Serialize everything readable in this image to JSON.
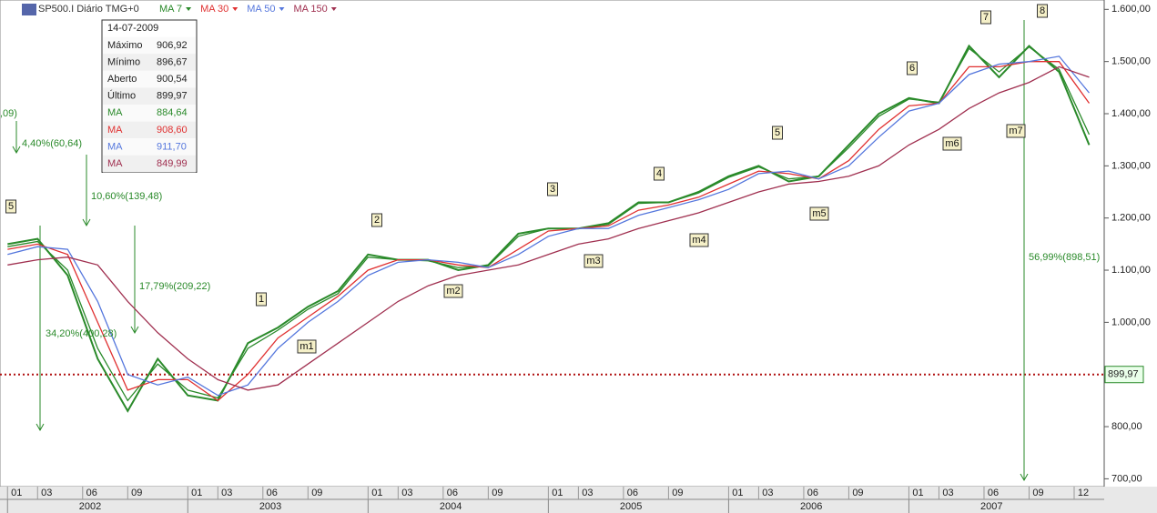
{
  "chart_data": {
    "type": "line",
    "instrument": "SP500.I Diário TMG+0",
    "x": [
      0,
      2,
      4,
      6,
      8,
      10,
      12,
      14,
      16,
      18,
      20,
      22,
      24,
      26,
      28,
      30,
      32,
      34,
      36,
      38,
      40,
      42,
      44,
      46,
      48,
      50,
      52,
      54,
      56,
      58,
      60,
      62,
      64,
      66,
      68,
      70,
      72
    ],
    "xlim": [
      -0.5,
      73
    ],
    "ylim": [
      685,
      1618
    ],
    "yticks": [
      {
        "value": 1600,
        "label": "1.600,00"
      },
      {
        "value": 1500,
        "label": "1.500,00"
      },
      {
        "value": 1400,
        "label": "1.400,00"
      },
      {
        "value": 1300,
        "label": "1.300,00"
      },
      {
        "value": 1200,
        "label": "1.200,00"
      },
      {
        "value": 1100,
        "label": "1.100,00"
      },
      {
        "value": 1000,
        "label": "1.000,00"
      },
      {
        "value": 900,
        "label": "900,00"
      },
      {
        "value": 800,
        "label": "800,00"
      },
      {
        "value": 700,
        "label": "700,00"
      }
    ],
    "xticks": [
      {
        "value": 0,
        "label": "01"
      },
      {
        "value": 2,
        "label": "03"
      },
      {
        "value": 5,
        "label": "06"
      },
      {
        "value": 8,
        "label": "09"
      },
      {
        "value": 12,
        "label": "01"
      },
      {
        "value": 14,
        "label": "03"
      },
      {
        "value": 17,
        "label": "06"
      },
      {
        "value": 20,
        "label": "09"
      },
      {
        "value": 24,
        "label": "01"
      },
      {
        "value": 26,
        "label": "03"
      },
      {
        "value": 29,
        "label": "06"
      },
      {
        "value": 32,
        "label": "09"
      },
      {
        "value": 36,
        "label": "01"
      },
      {
        "value": 38,
        "label": "03"
      },
      {
        "value": 41,
        "label": "06"
      },
      {
        "value": 44,
        "label": "09"
      },
      {
        "value": 48,
        "label": "01"
      },
      {
        "value": 50,
        "label": "03"
      },
      {
        "value": 53,
        "label": "06"
      },
      {
        "value": 56,
        "label": "09"
      },
      {
        "value": 60,
        "label": "01"
      },
      {
        "value": 62,
        "label": "03"
      },
      {
        "value": 65,
        "label": "06"
      },
      {
        "value": 68,
        "label": "09"
      },
      {
        "value": 71,
        "label": "12"
      }
    ],
    "year_labels": [
      {
        "value": 5.5,
        "label": "2002"
      },
      {
        "value": 17.5,
        "label": "2003"
      },
      {
        "value": 29.5,
        "label": "2004"
      },
      {
        "value": 41.5,
        "label": "2005"
      },
      {
        "value": 53.5,
        "label": "2006"
      },
      {
        "value": 65.5,
        "label": "2007"
      }
    ],
    "series": [
      {
        "name": "SP500.I Diário TMG+0",
        "color": "#2a8a2a",
        "values": [
          1150,
          1160,
          1090,
          930,
          830,
          930,
          860,
          850,
          960,
          990,
          1030,
          1060,
          1130,
          1120,
          1120,
          1100,
          1110,
          1170,
          1180,
          1180,
          1190,
          1230,
          1230,
          1250,
          1280,
          1300,
          1270,
          1280,
          1340,
          1400,
          1430,
          1420,
          1530,
          1470,
          1530,
          1480,
          1340
        ]
      },
      {
        "name": "MA 7",
        "color": "#2a8a2a",
        "values": [
          1145,
          1155,
          1100,
          950,
          850,
          920,
          870,
          855,
          950,
          985,
          1025,
          1055,
          1125,
          1120,
          1118,
          1105,
          1108,
          1165,
          1180,
          1180,
          1188,
          1228,
          1230,
          1248,
          1278,
          1298,
          1275,
          1280,
          1335,
          1395,
          1428,
          1422,
          1525,
          1480,
          1528,
          1485,
          1360
        ]
      },
      {
        "name": "MA 30",
        "color": "#e03030",
        "values": [
          1140,
          1150,
          1130,
          1000,
          870,
          890,
          890,
          850,
          900,
          970,
          1010,
          1050,
          1100,
          1120,
          1120,
          1110,
          1105,
          1140,
          1175,
          1180,
          1185,
          1215,
          1225,
          1240,
          1265,
          1290,
          1285,
          1275,
          1310,
          1370,
          1415,
          1420,
          1490,
          1490,
          1500,
          1500,
          1420
        ]
      },
      {
        "name": "MA 50",
        "color": "#5577dd",
        "values": [
          1130,
          1145,
          1140,
          1040,
          900,
          880,
          895,
          860,
          880,
          950,
          1000,
          1040,
          1090,
          1115,
          1120,
          1115,
          1105,
          1130,
          1165,
          1180,
          1180,
          1205,
          1220,
          1235,
          1255,
          1285,
          1290,
          1275,
          1300,
          1355,
          1405,
          1420,
          1475,
          1495,
          1500,
          1510,
          1440
        ]
      },
      {
        "name": "MA 150",
        "color": "#a03050",
        "values": [
          1110,
          1120,
          1125,
          1110,
          1040,
          980,
          930,
          890,
          870,
          880,
          920,
          960,
          1000,
          1040,
          1070,
          1090,
          1100,
          1110,
          1130,
          1150,
          1160,
          1180,
          1195,
          1210,
          1230,
          1250,
          1265,
          1270,
          1280,
          1300,
          1340,
          1370,
          1410,
          1440,
          1460,
          1490,
          1470
        ]
      }
    ],
    "last_price": {
      "value": 899.97,
      "label": "899,97"
    },
    "info_box": {
      "date": "14-07-2009",
      "rows": [
        [
          "Máximo",
          "906,92"
        ],
        [
          "Mínimo",
          "896,67"
        ],
        [
          "Aberto",
          "900,54"
        ],
        [
          "Último",
          "899,97"
        ],
        [
          "MA",
          "884,64"
        ],
        [
          "MA",
          "908,60"
        ],
        [
          "MA",
          "911,70"
        ],
        [
          "MA",
          "849,99"
        ]
      ]
    },
    "wave_labels": [
      "5",
      "1",
      "2",
      "3",
      "4",
      "5",
      "6",
      "7",
      "8",
      "m1",
      "m2",
      "m3",
      "m4",
      "m5",
      "m6",
      "m7"
    ],
    "annotations": [
      ",09)",
      "4,40%(60,64)",
      "10,60%(139,48)",
      "17,79%(209,22)",
      "34,20%(400,28)",
      "56,99%(898,51)"
    ],
    "grid": false
  }
}
